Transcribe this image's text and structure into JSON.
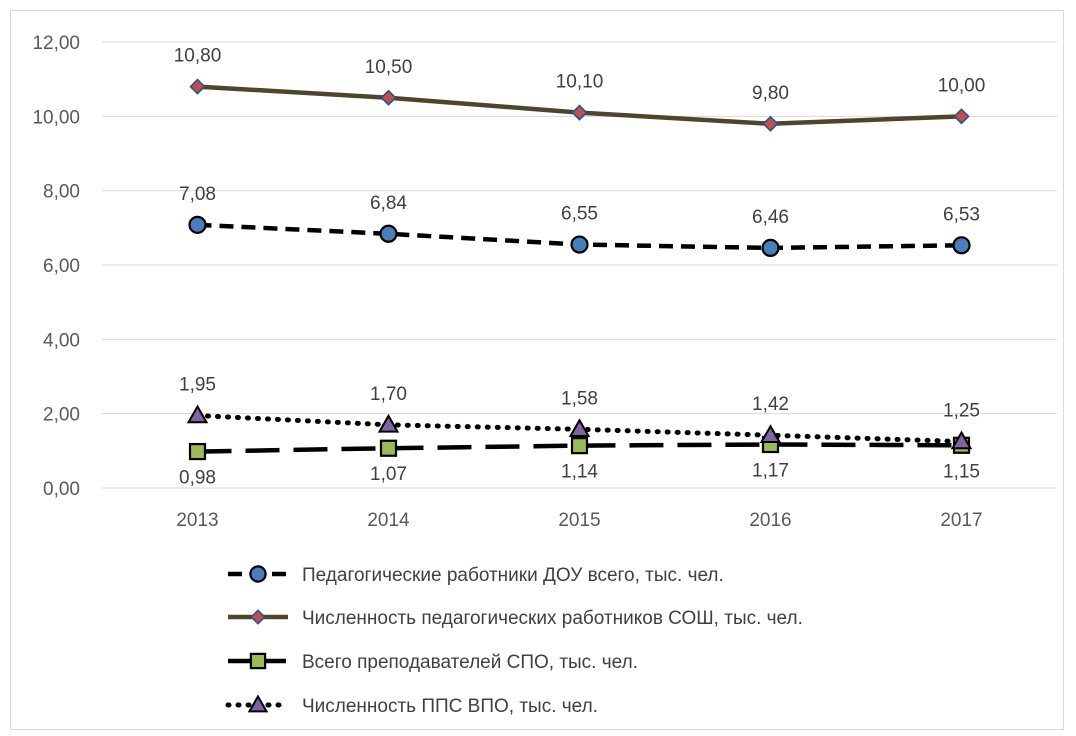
{
  "chart_data": {
    "type": "line",
    "categories": [
      "2013",
      "2014",
      "2015",
      "2016",
      "2017"
    ],
    "ylim": [
      0,
      12
    ],
    "y_ticks": [
      "0,00",
      "2,00",
      "4,00",
      "6,00",
      "8,00",
      "10,00",
      "12,00"
    ],
    "grid": true,
    "legend_position": "bottom",
    "series": [
      {
        "name": "Педагогические работники ДОУ всего, тыс. чел.",
        "values": [
          7.08,
          6.84,
          6.55,
          6.46,
          6.53
        ],
        "labels": [
          "7,08",
          "6,84",
          "6,55",
          "6,46",
          "6,53"
        ],
        "label_position": "above",
        "line_color": "#000000",
        "line_style": "dashed",
        "marker": "circle",
        "marker_color": "#4a7ebb"
      },
      {
        "name": "Численность педагогических работников СОШ, тыс. чел.",
        "values": [
          10.8,
          10.5,
          10.1,
          9.8,
          10.0
        ],
        "labels": [
          "10,80",
          "10,50",
          "10,10",
          "9,80",
          "10,00"
        ],
        "label_position": "above",
        "line_color": "#4d452c",
        "line_style": "solid",
        "marker": "diamond",
        "marker_color": "#c0504d"
      },
      {
        "name": "Всего преподавателей СПО, тыс. чел.",
        "values": [
          0.98,
          1.07,
          1.14,
          1.17,
          1.15
        ],
        "labels": [
          "0,98",
          "1,07",
          "1,14",
          "1,17",
          "1,15"
        ],
        "label_position": "below",
        "line_color": "#000000",
        "line_style": "long-dash",
        "marker": "square",
        "marker_color": "#9bbb59"
      },
      {
        "name": "Численность ППС ВПО, тыс. чел.",
        "values": [
          1.95,
          1.7,
          1.58,
          1.42,
          1.25
        ],
        "labels": [
          "1,95",
          "1,70",
          "1,58",
          "1,42",
          "1,25"
        ],
        "label_position": "above",
        "line_color": "#000000",
        "line_style": "dotted",
        "marker": "triangle",
        "marker_color": "#8064a2"
      }
    ]
  }
}
